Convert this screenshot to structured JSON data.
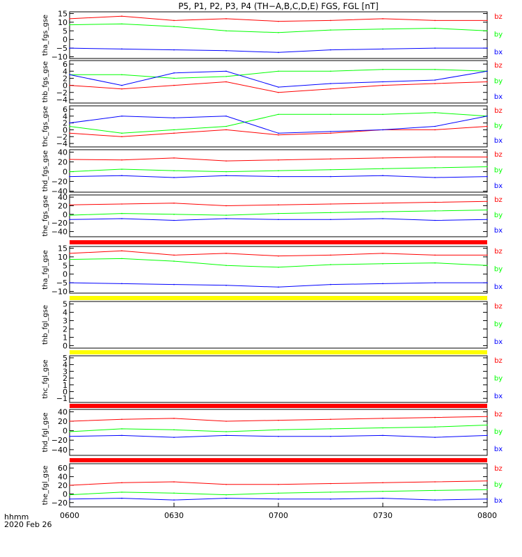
{
  "title": "P5, P1, P2, P3, P4 (TH−A,B,C,D,E) FGS, FGL [nT]",
  "footer": {
    "time_label": "hhmm",
    "date_label": "2020 Feb 26"
  },
  "x_ticks": [
    "0600",
    "0630",
    "0700",
    "0730",
    "0800"
  ],
  "colors": {
    "bz": "#ff0000",
    "by": "#00ff00",
    "bx": "#0000ff",
    "flag_red": "#ff0000",
    "flag_yellow": "#ffff00"
  },
  "chart_data": [
    {
      "type": "line",
      "ylabel": "tha_fgs_gse",
      "ylim": [
        -11,
        16
      ],
      "yticks": [
        "15",
        "10",
        "5",
        "0",
        "−5",
        "−10"
      ],
      "legend": [
        "bz",
        "by",
        "bx"
      ],
      "x": [
        "0600",
        "0615",
        "0630",
        "0645",
        "0700",
        "0715",
        "0730",
        "0745",
        "0800"
      ],
      "series": [
        {
          "name": "bz",
          "values": [
            12,
            13.5,
            11,
            12,
            10.5,
            11,
            12,
            11,
            11
          ]
        },
        {
          "name": "by",
          "values": [
            8.5,
            9,
            7.5,
            5,
            4,
            5.5,
            6,
            6.5,
            5
          ]
        },
        {
          "name": "bx",
          "values": [
            -5,
            -5.5,
            -6,
            -6.5,
            -7.5,
            -6,
            -5.5,
            -5,
            -5
          ]
        }
      ]
    },
    {
      "type": "line",
      "ylabel": "thb_fgs_gse",
      "ylim": [
        -5,
        7
      ],
      "yticks": [
        "6",
        "4",
        "2",
        "0",
        "−2",
        "−4"
      ],
      "legend": [
        "bz",
        "by",
        "bx"
      ],
      "x": [
        "0600",
        "0615",
        "0630",
        "0645",
        "0700",
        "0715",
        "0730",
        "0745",
        "0800"
      ],
      "series": [
        {
          "name": "bz",
          "values": [
            0,
            -1,
            0,
            1,
            -2,
            -1,
            0,
            0.5,
            1
          ]
        },
        {
          "name": "by",
          "values": [
            3,
            3,
            2,
            2.5,
            4,
            4,
            4.5,
            4.5,
            4
          ]
        },
        {
          "name": "bx",
          "values": [
            3,
            0,
            3.5,
            4,
            -0.5,
            0.5,
            1,
            1.5,
            4
          ]
        }
      ]
    },
    {
      "type": "line",
      "ylabel": "thc_fgs_gse",
      "ylim": [
        -5,
        7
      ],
      "yticks": [
        "6",
        "4",
        "2",
        "0",
        "−2",
        "−4"
      ],
      "legend": [
        "bz",
        "by",
        "bx"
      ],
      "x": [
        "0600",
        "0615",
        "0630",
        "0645",
        "0700",
        "0715",
        "0730",
        "0745",
        "0800"
      ],
      "series": [
        {
          "name": "bz",
          "values": [
            -1,
            -2,
            -1,
            0,
            -1.5,
            -1,
            0,
            0,
            1
          ]
        },
        {
          "name": "by",
          "values": [
            1,
            -1,
            0,
            1,
            4.5,
            4.5,
            4.5,
            5,
            4
          ]
        },
        {
          "name": "bx",
          "values": [
            2,
            4,
            3.5,
            4,
            -1,
            -0.5,
            0,
            1,
            4
          ]
        }
      ]
    },
    {
      "type": "line",
      "ylabel": "thd_fgs_gse",
      "ylim": [
        -42,
        45
      ],
      "yticks": [
        "40",
        "20",
        "0",
        "−20",
        "−40"
      ],
      "legend": [
        "bz",
        "by",
        "bx"
      ],
      "x": [
        "0600",
        "0615",
        "0630",
        "0645",
        "0700",
        "0715",
        "0730",
        "0745",
        "0800"
      ],
      "series": [
        {
          "name": "bz",
          "values": [
            25,
            24,
            28,
            22,
            24,
            26,
            28,
            30,
            30
          ]
        },
        {
          "name": "by",
          "values": [
            0,
            5,
            2,
            0,
            2,
            4,
            6,
            8,
            10
          ]
        },
        {
          "name": "bx",
          "values": [
            -10,
            -8,
            -12,
            -8,
            -10,
            -10,
            -8,
            -12,
            -10
          ]
        }
      ]
    },
    {
      "type": "line",
      "ylabel": "the_fgs_gse",
      "ylim": [
        -52,
        45
      ],
      "yticks": [
        "40",
        "20",
        "0",
        "−20",
        "−40"
      ],
      "legend": [
        "bz",
        "by",
        "bx"
      ],
      "x": [
        "0600",
        "0615",
        "0630",
        "0645",
        "0700",
        "0715",
        "0730",
        "0745",
        "0800"
      ],
      "series": [
        {
          "name": "bz",
          "values": [
            22,
            24,
            26,
            20,
            22,
            24,
            26,
            28,
            30
          ]
        },
        {
          "name": "by",
          "values": [
            -2,
            2,
            0,
            -2,
            2,
            4,
            6,
            8,
            10
          ]
        },
        {
          "name": "bx",
          "values": [
            -12,
            -10,
            -14,
            -10,
            -12,
            -12,
            -10,
            -14,
            -12
          ]
        }
      ]
    },
    {
      "type": "line",
      "ylabel": "tha_fgl_gse",
      "ylim": [
        -11,
        16
      ],
      "yticks": [
        "15",
        "10",
        "5",
        "0",
        "−5",
        "−10"
      ],
      "legend": [
        "bz",
        "by",
        "bx"
      ],
      "x": [
        "0600",
        "0615",
        "0630",
        "0645",
        "0700",
        "0715",
        "0730",
        "0745",
        "0800"
      ],
      "series": [
        {
          "name": "bz",
          "values": [
            12,
            13.5,
            11,
            12,
            10.5,
            11,
            12,
            11,
            11
          ]
        },
        {
          "name": "by",
          "values": [
            8.5,
            9,
            7.5,
            5,
            4,
            5.5,
            6,
            6.5,
            5
          ]
        },
        {
          "name": "bx",
          "values": [
            -5,
            -5.5,
            -6,
            -6.5,
            -7.5,
            -6,
            -5.5,
            -5,
            -5
          ]
        }
      ]
    },
    {
      "type": "line",
      "ylabel": "thb_fgl_gse",
      "ylim": [
        -0.3,
        5.3
      ],
      "yticks": [
        "5",
        "4",
        "3",
        "2",
        "1",
        "0"
      ],
      "legend": [
        "bz",
        "by",
        "bx"
      ],
      "series": []
    },
    {
      "type": "line",
      "ylabel": "thc_fgl_gse",
      "ylim": [
        -1.6,
        5.3
      ],
      "yticks": [
        "5",
        "4",
        "3",
        "2",
        "1",
        "0",
        "−1"
      ],
      "legend": [
        "bz",
        "by",
        "bx"
      ],
      "series": []
    },
    {
      "type": "line",
      "ylabel": "thd_fgl_gse",
      "ylim": [
        -52,
        45
      ],
      "yticks": [
        "40",
        "20",
        "0",
        "−20",
        "−40"
      ],
      "legend": [
        "bz",
        "by",
        "bx"
      ],
      "x": [
        "0600",
        "0615",
        "0630",
        "0645",
        "0700",
        "0715",
        "0730",
        "0745",
        "0800"
      ],
      "series": [
        {
          "name": "bz",
          "values": [
            20,
            24,
            26,
            20,
            22,
            24,
            26,
            28,
            30
          ]
        },
        {
          "name": "by",
          "values": [
            -2,
            4,
            2,
            -2,
            2,
            4,
            6,
            8,
            12
          ]
        },
        {
          "name": "bx",
          "values": [
            -12,
            -10,
            -14,
            -10,
            -12,
            -12,
            -10,
            -14,
            -10
          ]
        }
      ]
    },
    {
      "type": "line",
      "ylabel": "the_fgl_gse",
      "ylim": [
        -30,
        70
      ],
      "yticks": [
        "60",
        "40",
        "20",
        "0",
        "−20"
      ],
      "legend": [
        "bz",
        "by",
        "bx"
      ],
      "x": [
        "0600",
        "0615",
        "0630",
        "0645",
        "0700",
        "0715",
        "0730",
        "0745",
        "0800"
      ],
      "series": [
        {
          "name": "bz",
          "values": [
            20,
            26,
            28,
            22,
            22,
            24,
            26,
            28,
            30
          ]
        },
        {
          "name": "by",
          "values": [
            -2,
            4,
            2,
            -2,
            2,
            4,
            6,
            8,
            10
          ]
        },
        {
          "name": "bx",
          "values": [
            -12,
            -10,
            -14,
            -10,
            -12,
            -12,
            -10,
            -14,
            -12
          ]
        }
      ]
    }
  ]
}
